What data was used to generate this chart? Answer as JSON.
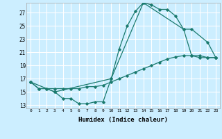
{
  "title": "",
  "xlabel": "Humidex (Indice chaleur)",
  "background_color": "#cceeff",
  "grid_color": "#ffffff",
  "line_color": "#1a7a6e",
  "xlim": [
    -0.5,
    23.5
  ],
  "ylim": [
    12.5,
    28.5
  ],
  "yticks": [
    13,
    15,
    17,
    19,
    21,
    23,
    25,
    27
  ],
  "xticks": [
    0,
    1,
    2,
    3,
    4,
    5,
    6,
    7,
    8,
    9,
    10,
    11,
    12,
    13,
    14,
    15,
    16,
    17,
    18,
    19,
    20,
    21,
    22,
    23
  ],
  "series": [
    {
      "x": [
        0,
        1,
        2,
        3,
        4,
        5,
        6,
        7,
        8,
        9,
        10,
        11,
        12,
        13,
        14,
        15,
        16,
        17,
        18,
        19,
        20,
        21,
        22,
        23
      ],
      "y": [
        16.5,
        15.5,
        15.5,
        15.0,
        14.0,
        14.0,
        13.2,
        13.2,
        13.5,
        13.5,
        17.0,
        21.5,
        25.0,
        27.2,
        28.5,
        28.2,
        27.5,
        27.5,
        26.5,
        24.5,
        20.5,
        20.5,
        20.2,
        20.2
      ]
    },
    {
      "x": [
        0,
        1,
        2,
        3,
        4,
        5,
        6,
        7,
        8,
        9,
        10,
        11,
        12,
        13,
        14,
        15,
        16,
        17,
        18,
        19,
        20,
        21,
        22,
        23
      ],
      "y": [
        16.5,
        15.5,
        15.5,
        15.5,
        15.5,
        15.5,
        15.5,
        15.8,
        15.8,
        16.0,
        16.5,
        17.0,
        17.5,
        18.0,
        18.5,
        19.0,
        19.5,
        20.0,
        20.3,
        20.5,
        20.5,
        20.2,
        20.2,
        20.2
      ]
    },
    {
      "x": [
        0,
        3,
        10,
        14,
        19,
        20,
        22,
        23
      ],
      "y": [
        16.5,
        15.0,
        17.0,
        28.5,
        24.5,
        24.5,
        22.5,
        20.2
      ]
    }
  ]
}
